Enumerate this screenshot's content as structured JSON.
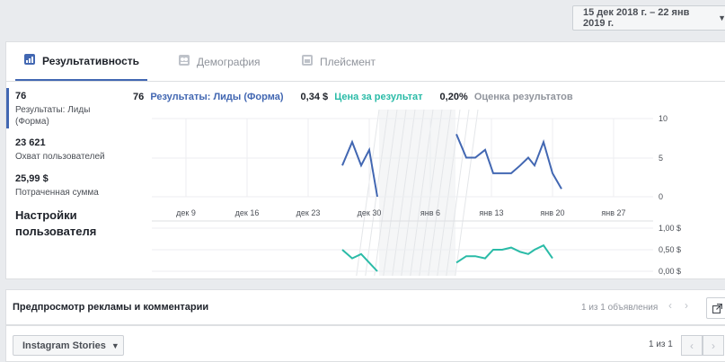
{
  "date_range": {
    "label": "15 дек 2018 г. – 22 янв 2019 г."
  },
  "tabs": [
    {
      "label": "Результативность",
      "icon": "bar-chart-icon",
      "active": true
    },
    {
      "label": "Демография",
      "icon": "people-icon",
      "active": false
    },
    {
      "label": "Плейсмент",
      "icon": "placement-icon",
      "active": false
    }
  ],
  "metrics": [
    {
      "value": "76",
      "label": "Результаты: Лиды (Форма)"
    },
    {
      "value": "23 621",
      "label": "Охват пользователей"
    },
    {
      "value": "25,99 $",
      "label": "Потраченная сумма"
    }
  ],
  "settings_label": "Настройки пользователя",
  "summary": {
    "results_value": "76",
    "results_label": "Результаты: Лиды (Форма)",
    "cost_value": "0,34 $",
    "cost_label": "Цена за результат",
    "score_value": "0,20%",
    "score_label": "Оценка результатов"
  },
  "colors": {
    "results": "#4267b2",
    "cost": "#2abba7",
    "score": "#90949c",
    "grid": "#e9ebee"
  },
  "chart_data": [
    {
      "type": "line",
      "x_tick_labels": [
        "дек 9",
        "дек 16",
        "дек 23",
        "дек 30",
        "янв 6",
        "янв 13",
        "янв 20",
        "янв 27"
      ],
      "x": [
        "дек 27",
        "дек 28",
        "дек 29",
        "дек 30",
        "дек 31",
        "янв 9",
        "янв 10",
        "янв 11",
        "янв 12",
        "янв 13",
        "янв 14",
        "янв 15",
        "янв 16",
        "янв 17",
        "янв 18"
      ],
      "series": [
        {
          "name": "Результаты: Лиды (Форма)",
          "values": [
            4,
            7,
            4,
            6,
            0,
            null,
            null,
            null,
            null,
            null,
            null,
            null,
            null,
            null,
            null
          ]
        },
        {
          "values": [
            null,
            null,
            null,
            null,
            null,
            8,
            5,
            5,
            6,
            3,
            3,
            3,
            4,
            5,
            4
          ]
        }
      ],
      "extra_points": [
        [
          "янв 19",
          7
        ],
        [
          "янв 20",
          3
        ],
        [
          "янв 21",
          1
        ]
      ],
      "y_ticks": [
        "10",
        "5",
        "0"
      ],
      "ylim": [
        0,
        10
      ]
    },
    {
      "type": "line",
      "series": [
        {
          "name": "Цена за результат",
          "values": [
            0.5,
            0.3,
            0.4,
            0.2,
            0.0,
            0.2,
            0.35,
            0.35,
            0.3,
            0.5,
            0.5,
            0.55,
            0.45,
            0.4,
            0.5,
            0.6,
            0.3
          ]
        }
      ],
      "y_ticks": [
        "1,00 $",
        "0,50 $",
        "0,00 $"
      ],
      "ylim": [
        0,
        1
      ]
    }
  ],
  "preview": {
    "title": "Предпросмотр рекламы и комментарии",
    "count": "1 из 1 объявления"
  },
  "bottom": {
    "placement_label": "Instagram Stories",
    "count": "1 из 1"
  }
}
